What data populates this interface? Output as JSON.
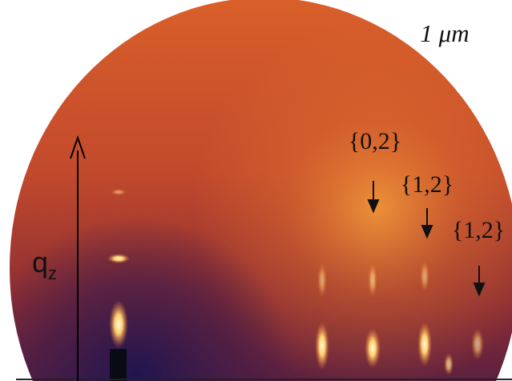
{
  "image": {
    "scale_label": "1 μm",
    "axis_label": "q",
    "axis_subscript": "z",
    "peaks": [
      {
        "label": "{0,2}"
      },
      {
        "label": "{1,2}"
      },
      {
        "label": "{1,2}"
      }
    ]
  }
}
